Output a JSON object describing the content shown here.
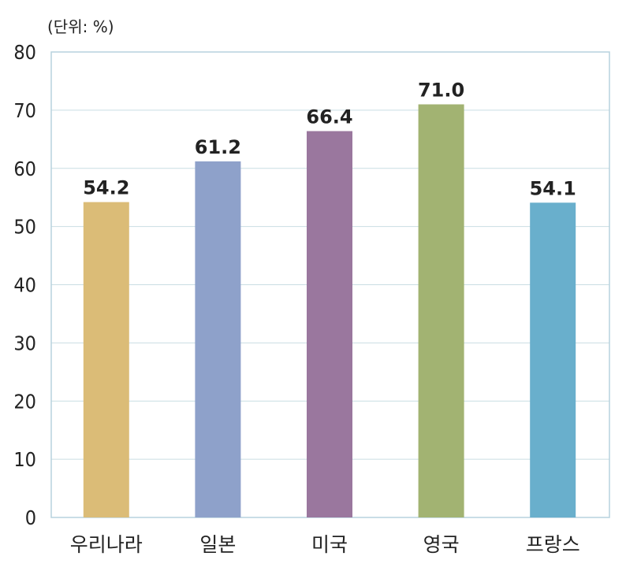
{
  "chart_data": {
    "type": "bar",
    "unit_label": "(단위: %)",
    "categories": [
      "우리나라",
      "일본",
      "미국",
      "영국",
      "프랑스"
    ],
    "values": [
      54.2,
      61.2,
      66.4,
      71.0,
      54.1
    ],
    "value_labels": [
      "54.2",
      "61.2",
      "66.4",
      "71.0",
      "54.1"
    ],
    "bar_colors": [
      "#dbbc77",
      "#8ea1ca",
      "#9a779e",
      "#a2b372",
      "#69afcc"
    ],
    "ylim": [
      0,
      80
    ],
    "yticks": [
      "0",
      "10",
      "20",
      "30",
      "40",
      "50",
      "60",
      "70",
      "80"
    ],
    "grid": true,
    "grid_color": "#c9dde3",
    "frame_color": "#b7d2de",
    "title": "",
    "xlabel": "",
    "ylabel": ""
  }
}
